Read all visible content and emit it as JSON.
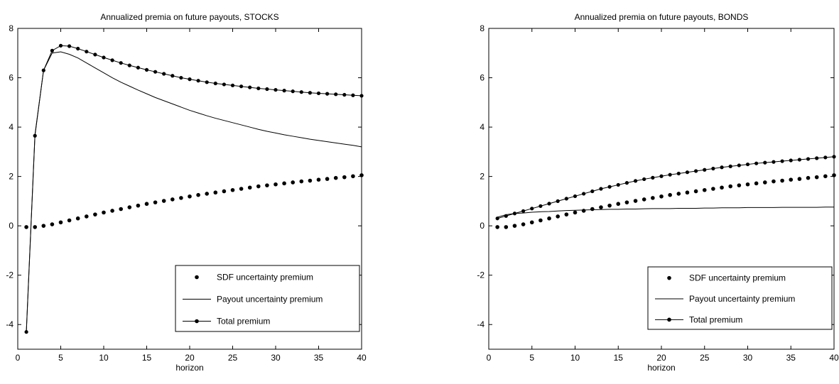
{
  "figure_title": "",
  "chart_data": [
    {
      "type": "line",
      "title": "Annualized premia on future payouts, STOCKS",
      "xlabel": "horizon",
      "ylabel": "",
      "xlim": [
        0,
        40
      ],
      "ylim": [
        -5,
        8
      ],
      "xticks": [
        0,
        5,
        10,
        15,
        20,
        25,
        30,
        35,
        40
      ],
      "yticks": [
        -4,
        -2,
        0,
        2,
        4,
        6,
        8
      ],
      "grid": false,
      "legend_position": "bottom-right",
      "x": [
        1,
        2,
        3,
        4,
        5,
        6,
        7,
        8,
        9,
        10,
        11,
        12,
        13,
        14,
        15,
        16,
        17,
        18,
        19,
        20,
        21,
        22,
        23,
        24,
        25,
        26,
        27,
        28,
        29,
        30,
        31,
        32,
        33,
        34,
        35,
        36,
        37,
        38,
        39,
        40
      ],
      "series": [
        {
          "name": "SDF uncertainty premium",
          "style": "dots",
          "values": [
            -0.05,
            -0.05,
            0.0,
            0.06,
            0.14,
            0.22,
            0.3,
            0.38,
            0.46,
            0.54,
            0.61,
            0.68,
            0.75,
            0.82,
            0.89,
            0.95,
            1.01,
            1.07,
            1.13,
            1.19,
            1.25,
            1.3,
            1.35,
            1.4,
            1.45,
            1.5,
            1.55,
            1.6,
            1.64,
            1.68,
            1.72,
            1.76,
            1.8,
            1.83,
            1.87,
            1.9,
            1.94,
            1.97,
            2.01,
            2.05
          ]
        },
        {
          "name": "Payout uncertainty premium",
          "style": "line",
          "values": [
            -4.25,
            3.7,
            6.3,
            7.0,
            7.05,
            6.95,
            6.8,
            6.6,
            6.4,
            6.2,
            6.0,
            5.82,
            5.66,
            5.5,
            5.35,
            5.2,
            5.07,
            4.94,
            4.81,
            4.68,
            4.57,
            4.46,
            4.36,
            4.27,
            4.18,
            4.09,
            4.0,
            3.91,
            3.83,
            3.76,
            3.69,
            3.63,
            3.57,
            3.51,
            3.46,
            3.41,
            3.36,
            3.31,
            3.26,
            3.2
          ]
        },
        {
          "name": "Total premium",
          "style": "line-dots",
          "values": [
            -4.3,
            3.65,
            6.3,
            7.1,
            7.3,
            7.28,
            7.18,
            7.06,
            6.94,
            6.82,
            6.71,
            6.6,
            6.5,
            6.41,
            6.32,
            6.24,
            6.16,
            6.08,
            6.0,
            5.94,
            5.88,
            5.82,
            5.77,
            5.73,
            5.69,
            5.65,
            5.61,
            5.57,
            5.54,
            5.51,
            5.48,
            5.45,
            5.42,
            5.39,
            5.37,
            5.35,
            5.33,
            5.31,
            5.29,
            5.27
          ]
        }
      ]
    },
    {
      "type": "line",
      "title": "Annualized premia on future payouts, BONDS",
      "xlabel": "horizon",
      "ylabel": "",
      "xlim": [
        0,
        40
      ],
      "ylim": [
        -5,
        8
      ],
      "xticks": [
        0,
        5,
        10,
        15,
        20,
        25,
        30,
        35,
        40
      ],
      "yticks": [
        -4,
        -2,
        0,
        2,
        4,
        6,
        8
      ],
      "grid": false,
      "legend_position": "bottom-right",
      "x": [
        1,
        2,
        3,
        4,
        5,
        6,
        7,
        8,
        9,
        10,
        11,
        12,
        13,
        14,
        15,
        16,
        17,
        18,
        19,
        20,
        21,
        22,
        23,
        24,
        25,
        26,
        27,
        28,
        29,
        30,
        31,
        32,
        33,
        34,
        35,
        36,
        37,
        38,
        39,
        40
      ],
      "series": [
        {
          "name": "SDF uncertainty premium",
          "style": "dots",
          "values": [
            -0.05,
            -0.05,
            0.0,
            0.06,
            0.14,
            0.22,
            0.3,
            0.38,
            0.46,
            0.54,
            0.61,
            0.68,
            0.75,
            0.82,
            0.89,
            0.95,
            1.01,
            1.07,
            1.13,
            1.19,
            1.25,
            1.3,
            1.35,
            1.4,
            1.45,
            1.5,
            1.55,
            1.6,
            1.64,
            1.68,
            1.72,
            1.76,
            1.8,
            1.83,
            1.87,
            1.9,
            1.94,
            1.97,
            2.01,
            2.05
          ]
        },
        {
          "name": "Payout uncertainty premium",
          "style": "line",
          "values": [
            0.35,
            0.45,
            0.5,
            0.52,
            0.55,
            0.57,
            0.58,
            0.6,
            0.62,
            0.63,
            0.64,
            0.65,
            0.66,
            0.67,
            0.67,
            0.68,
            0.68,
            0.69,
            0.7,
            0.7,
            0.7,
            0.71,
            0.71,
            0.71,
            0.72,
            0.72,
            0.73,
            0.73,
            0.73,
            0.74,
            0.74,
            0.74,
            0.74,
            0.75,
            0.75,
            0.75,
            0.75,
            0.75,
            0.76,
            0.76
          ]
        },
        {
          "name": "Total premium",
          "style": "line-dots",
          "values": [
            0.3,
            0.4,
            0.5,
            0.6,
            0.7,
            0.8,
            0.9,
            1.0,
            1.1,
            1.2,
            1.3,
            1.4,
            1.5,
            1.58,
            1.66,
            1.74,
            1.82,
            1.89,
            1.95,
            2.01,
            2.07,
            2.12,
            2.17,
            2.22,
            2.27,
            2.32,
            2.37,
            2.41,
            2.45,
            2.49,
            2.53,
            2.56,
            2.59,
            2.62,
            2.65,
            2.68,
            2.71,
            2.74,
            2.77,
            2.8
          ]
        }
      ]
    }
  ]
}
